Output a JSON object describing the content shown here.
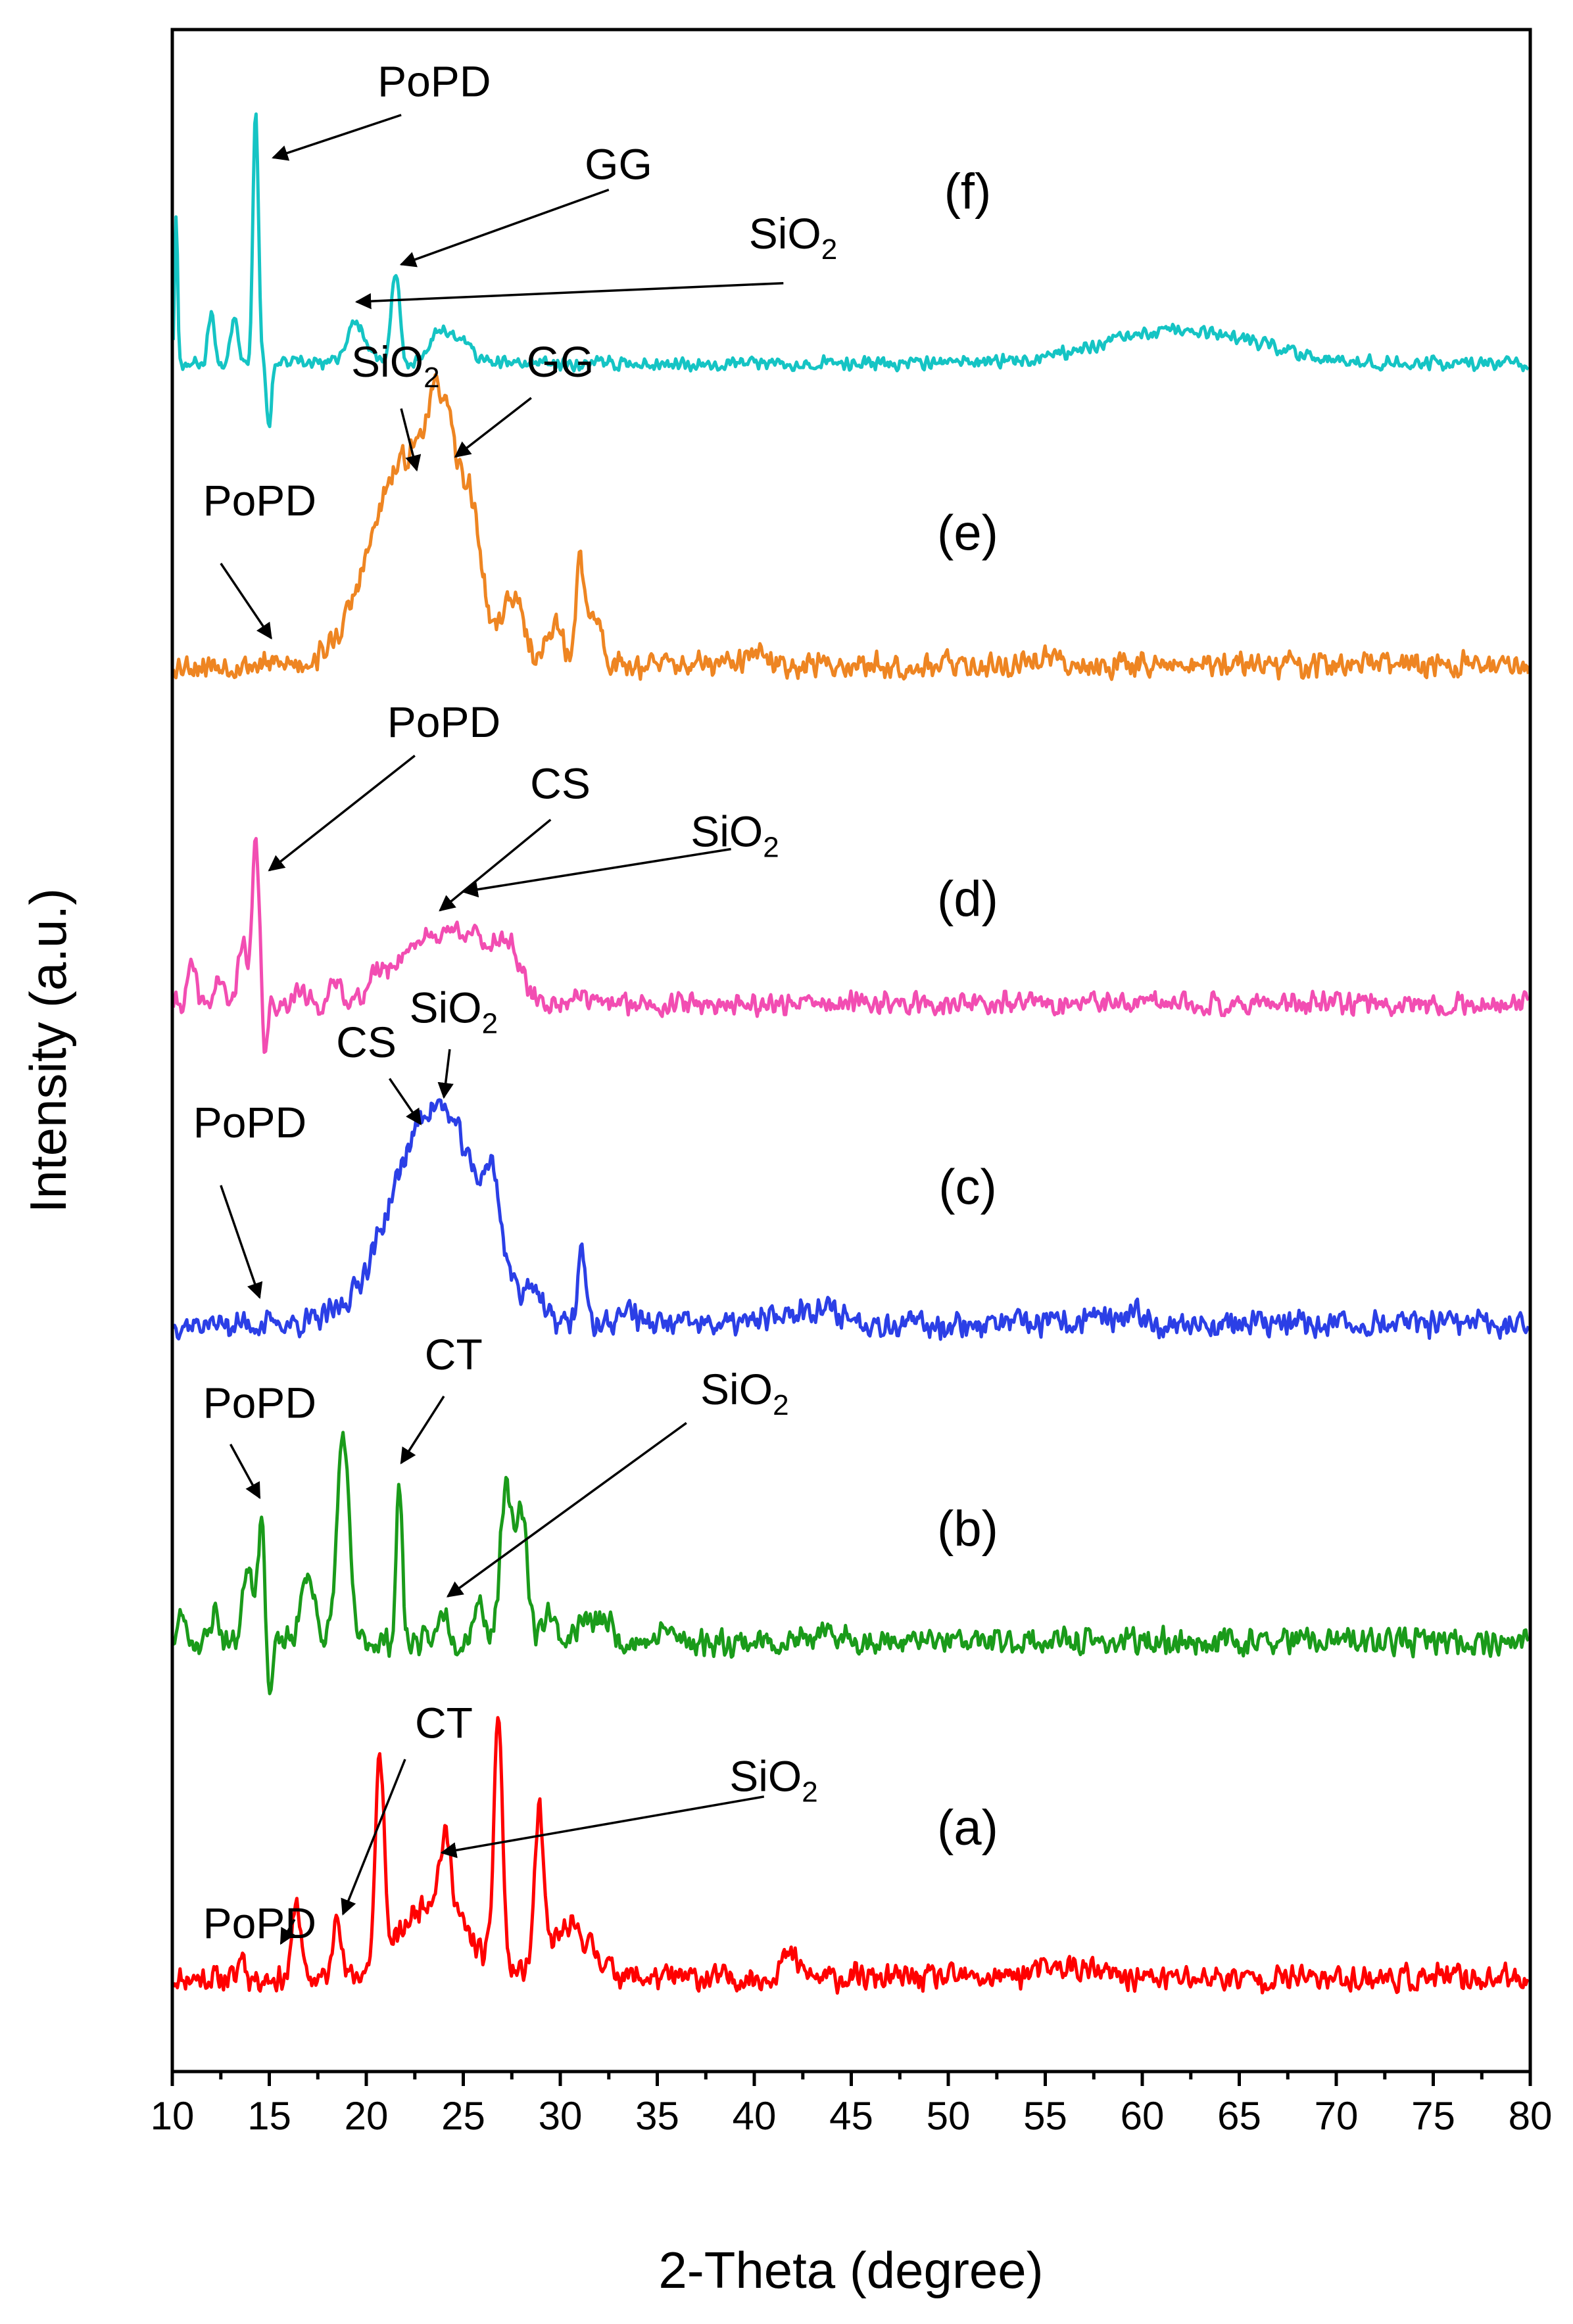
{
  "chart_data": {
    "type": "line",
    "title": "",
    "xlabel": "2-Theta (degree)",
    "ylabel": "Intensity (a.u.)",
    "xlim": [
      10,
      80
    ],
    "xticks": [
      10,
      15,
      20,
      25,
      30,
      35,
      40,
      45,
      50,
      55,
      60,
      65,
      70,
      75,
      80
    ],
    "yticks_shown": false,
    "stacked_offset": true,
    "series": [
      {
        "name": "(a)",
        "color": "#ff0000",
        "baseline": 0.0,
        "noise": 0.06,
        "seed": 11,
        "peaks": [
          [
            13.6,
            0.1,
            0.15
          ],
          [
            16.4,
            0.3,
            0.2
          ],
          [
            18.5,
            0.28,
            0.18
          ],
          [
            20.7,
            0.78,
            0.22
          ],
          [
            23.5,
            0.3,
            1.6
          ],
          [
            24.1,
            0.25,
            0.3
          ],
          [
            26.8,
            0.95,
            0.22
          ],
          [
            28.9,
            0.55,
            0.22
          ],
          [
            30.5,
            0.18,
            1.2
          ],
          [
            41.8,
            0.08,
            0.5
          ],
          [
            56.0,
            0.04,
            1.5
          ]
        ],
        "label_x": 51.0,
        "label_y": 0.5
      },
      {
        "name": "(b)",
        "color": "#1a9b1a",
        "baseline": 1.26,
        "noise": 0.06,
        "seed": 23,
        "peaks": [
          [
            10.5,
            0.1,
            0.2
          ],
          [
            12.2,
            0.12,
            0.2
          ],
          [
            13.9,
            0.3,
            0.25
          ],
          [
            14.6,
            0.45,
            0.2
          ],
          [
            17.0,
            0.25,
            0.35
          ],
          [
            18.8,
            0.78,
            0.3
          ],
          [
            21.7,
            0.6,
            0.15
          ],
          [
            24.0,
            0.12,
            0.25
          ],
          [
            25.8,
            0.15,
            0.3
          ],
          [
            27.2,
            0.55,
            0.3
          ],
          [
            28.0,
            0.5,
            0.3
          ],
          [
            29.4,
            0.12,
            0.3
          ],
          [
            31.2,
            0.08,
            0.4
          ],
          [
            32.3,
            0.08,
            0.4
          ],
          [
            35.5,
            0.05,
            0.3
          ],
          [
            44.0,
            0.02,
            1.0
          ]
        ],
        "dips": [
          [
            15.0,
            -0.25,
            0.15
          ]
        ],
        "label_x": 51.0,
        "label_y": 1.62
      },
      {
        "name": "(c)",
        "color": "#2b3fe6",
        "baseline": 2.45,
        "noise": 0.06,
        "seed": 37,
        "peaks": [
          [
            23.6,
            0.82,
            2.2
          ],
          [
            26.5,
            0.25,
            0.4
          ],
          [
            28.6,
            0.1,
            0.3
          ],
          [
            31.1,
            0.3,
            0.18
          ],
          [
            33.5,
            0.06,
            0.4
          ],
          [
            43.0,
            0.06,
            1.5
          ],
          [
            57.5,
            0.04,
            0.4
          ],
          [
            59.8,
            0.04,
            0.4
          ]
        ],
        "label_x": 51.0,
        "label_y": 2.9
      },
      {
        "name": "(d)",
        "color": "#f24db2",
        "baseline": 3.65,
        "noise": 0.05,
        "seed": 41,
        "peaks": [
          [
            11.0,
            0.14,
            0.2
          ],
          [
            12.4,
            0.1,
            0.2
          ],
          [
            13.6,
            0.25,
            0.2
          ],
          [
            14.3,
            0.6,
            0.18
          ],
          [
            16.5,
            0.05,
            0.3
          ],
          [
            18.5,
            0.08,
            0.3
          ],
          [
            20.5,
            0.06,
            0.4
          ],
          [
            22.5,
            0.2,
            1.3
          ],
          [
            25.2,
            0.25,
            1.3
          ],
          [
            27.3,
            0.18,
            0.6
          ],
          [
            30.9,
            0.05,
            0.3
          ]
        ],
        "dips": [
          [
            14.8,
            -0.2,
            0.12
          ]
        ],
        "label_x": 51.0,
        "label_y": 3.98
      },
      {
        "name": "(e)",
        "color": "#ee8522",
        "baseline": 4.92,
        "noise": 0.06,
        "seed": 53,
        "peaks": [
          [
            22.0,
            0.75,
            1.8
          ],
          [
            24.0,
            0.6,
            0.8
          ],
          [
            25.5,
            0.4,
            0.5
          ],
          [
            27.5,
            0.25,
            0.6
          ],
          [
            29.7,
            0.15,
            0.4
          ],
          [
            31.0,
            0.4,
            0.18
          ],
          [
            31.7,
            0.2,
            0.4
          ],
          [
            40.0,
            0.04,
            0.4
          ],
          [
            55.0,
            0.03,
            0.6
          ]
        ],
        "label_x": 51.0,
        "label_y": 5.35
      },
      {
        "name": "(f)",
        "color": "#15c4c4",
        "baseline": 6.05,
        "noise": 0.03,
        "seed": 67,
        "peaks": [
          [
            10.2,
            0.55,
            0.08
          ],
          [
            12.0,
            0.2,
            0.15
          ],
          [
            13.2,
            0.18,
            0.2
          ],
          [
            14.3,
            0.95,
            0.14
          ],
          [
            19.5,
            0.15,
            0.5
          ],
          [
            21.5,
            0.35,
            0.2
          ],
          [
            23.8,
            0.13,
            0.5
          ],
          [
            25.0,
            0.08,
            0.5
          ],
          [
            62.0,
            0.12,
            4.0
          ]
        ],
        "dips": [
          [
            15.0,
            -0.25,
            0.12
          ]
        ],
        "label_x": 51.0,
        "label_y": 6.63
      }
    ],
    "annotations": [
      {
        "text": "PoPD",
        "sub": "",
        "text_x": 14.5,
        "text_y": 0.15,
        "arrow_from": [
          16.3,
          0.22
        ],
        "arrow_to": [
          15.6,
          0.13
        ]
      },
      {
        "text": "CT",
        "sub": "",
        "text_x": 24.0,
        "text_y": 0.9,
        "arrow_from": [
          22.0,
          0.82
        ],
        "arrow_to": [
          18.8,
          0.24
        ]
      },
      {
        "text": "SiO",
        "sub": "2",
        "text_x": 41.0,
        "text_y": 0.7,
        "arrow_from": [
          40.5,
          0.68
        ],
        "arrow_to": [
          23.9,
          0.47
        ]
      },
      {
        "text": "PoPD",
        "sub": "",
        "text_x": 14.5,
        "text_y": 2.1,
        "arrow_from": [
          13.0,
          2.0
        ],
        "arrow_to": [
          14.5,
          1.8
        ]
      },
      {
        "text": "CT",
        "sub": "",
        "text_x": 24.5,
        "text_y": 2.28,
        "arrow_from": [
          24.0,
          2.18
        ],
        "arrow_to": [
          21.8,
          1.93
        ]
      },
      {
        "text": "SiO",
        "sub": "2",
        "text_x": 39.5,
        "text_y": 2.15,
        "arrow_from": [
          36.5,
          2.08
        ],
        "arrow_to": [
          24.2,
          1.43
        ]
      },
      {
        "text": "PoPD",
        "sub": "",
        "text_x": 14.0,
        "text_y": 3.15,
        "arrow_from": [
          12.5,
          2.97
        ],
        "arrow_to": [
          14.5,
          2.55
        ]
      },
      {
        "text": "CS",
        "sub": "",
        "text_x": 20.0,
        "text_y": 3.45,
        "arrow_from": [
          21.2,
          3.37
        ],
        "arrow_to": [
          22.8,
          3.2
        ]
      },
      {
        "text": "SiO",
        "sub": "2",
        "text_x": 24.5,
        "text_y": 3.58,
        "arrow_from": [
          24.3,
          3.48
        ],
        "arrow_to": [
          24.0,
          3.3
        ]
      },
      {
        "text": "PoPD",
        "sub": "",
        "text_x": 24.0,
        "text_y": 4.65,
        "arrow_from": [
          22.5,
          4.58
        ],
        "arrow_to": [
          15.0,
          4.15
        ]
      },
      {
        "text": "CS",
        "sub": "",
        "text_x": 30.0,
        "text_y": 4.42,
        "arrow_from": [
          29.5,
          4.34
        ],
        "arrow_to": [
          23.8,
          4.0
        ]
      },
      {
        "text": "SiO",
        "sub": "2",
        "text_x": 39.0,
        "text_y": 4.24,
        "arrow_from": [
          38.8,
          4.23
        ],
        "arrow_to": [
          25.0,
          4.07
        ]
      },
      {
        "text": "PoPD",
        "sub": "",
        "text_x": 14.5,
        "text_y": 5.48,
        "arrow_from": [
          12.5,
          5.3
        ],
        "arrow_to": [
          15.1,
          5.02
        ]
      },
      {
        "text": "SiO",
        "sub": "2",
        "text_x": 21.5,
        "text_y": 6.0,
        "arrow_from": [
          21.8,
          5.88
        ],
        "arrow_to": [
          22.6,
          5.65
        ]
      },
      {
        "text": "GG",
        "sub": "",
        "text_x": 30.0,
        "text_y": 6.0,
        "arrow_from": [
          28.5,
          5.92
        ],
        "arrow_to": [
          24.6,
          5.7
        ]
      },
      {
        "text": "PoPD",
        "sub": "",
        "text_x": 23.5,
        "text_y": 7.05,
        "arrow_from": [
          21.8,
          6.98
        ],
        "arrow_to": [
          15.2,
          6.82
        ]
      },
      {
        "text": "GG",
        "sub": "",
        "text_x": 33.0,
        "text_y": 6.74,
        "arrow_from": [
          32.5,
          6.7
        ],
        "arrow_to": [
          21.8,
          6.42
        ]
      },
      {
        "text": "SiO",
        "sub": "2",
        "text_x": 42.0,
        "text_y": 6.48,
        "arrow_from": [
          41.5,
          6.35
        ],
        "arrow_to": [
          19.5,
          6.28
        ]
      }
    ]
  }
}
